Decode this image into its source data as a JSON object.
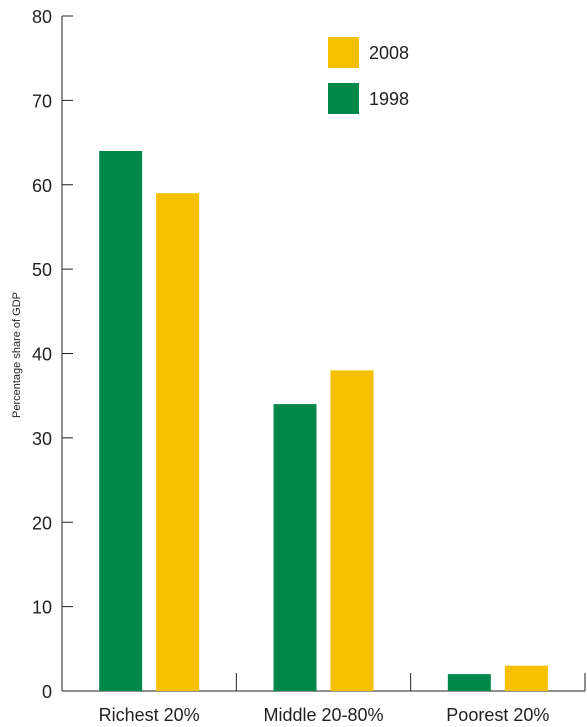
{
  "chart_data": {
    "type": "bar",
    "title": "",
    "xlabel": "",
    "ylabel": "Percentage share of GDP",
    "ylim": [
      0,
      80
    ],
    "yticks": [
      0,
      10,
      20,
      30,
      40,
      50,
      60,
      70,
      80
    ],
    "categories": [
      "Richest 20%",
      "Middle 20-80%",
      "Poorest 20%"
    ],
    "series": [
      {
        "name": "1998",
        "color": "#00874a",
        "values": [
          64,
          34,
          2
        ]
      },
      {
        "name": "2008",
        "color": "#f5c000",
        "values": [
          59,
          38,
          3
        ]
      }
    ],
    "legend": {
      "position": "top-right",
      "order": [
        "2008",
        "1998"
      ]
    },
    "grid": false
  }
}
